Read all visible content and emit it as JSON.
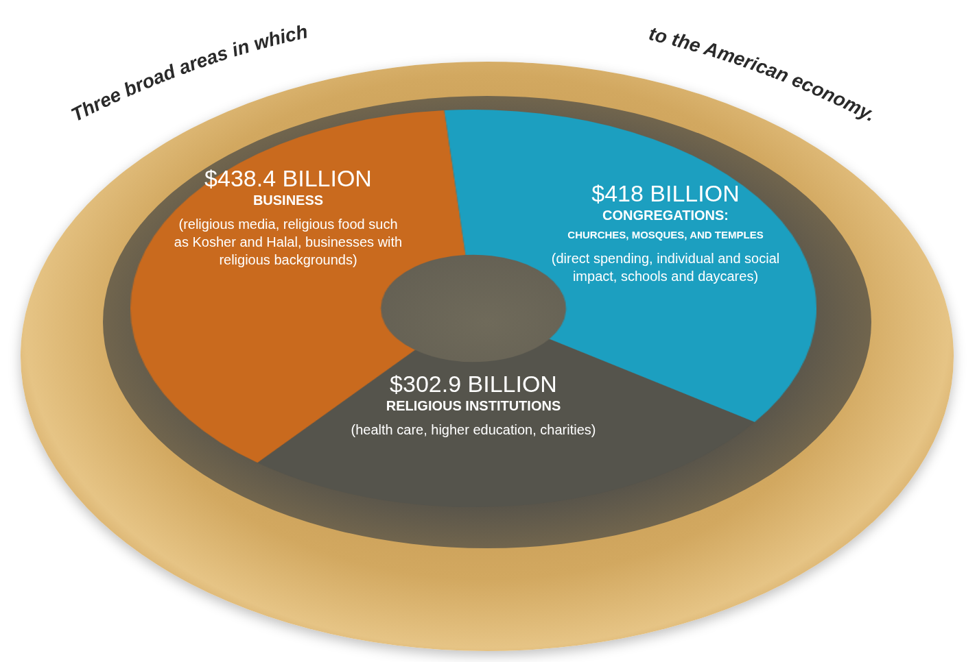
{
  "chart_data": {
    "type": "doughnut",
    "title": [
      "Three broad areas in which",
      "to the American economy."
    ],
    "categories": [
      "BUSINESS",
      "CONGREGATIONS:",
      "RELIGIOUS INSTITUTIONS"
    ],
    "subtitles": [
      null,
      "CHURCHES, MOSQUES, AND TEMPLES",
      null
    ],
    "descriptions": [
      "(religious media, religious food such as Kosher and Halal, businesses with religious backgrounds)",
      "(direct spending, individual and social impact, schools and daycares)",
      "(health care, higher education, charities)"
    ],
    "values": [
      438.4,
      418,
      302.9
    ],
    "value_labels": [
      "$438.4 BILLION",
      "$418 BILLION",
      "$302.9 BILLION"
    ],
    "colors": [
      "#c96a1e",
      "#1c9fc0",
      "#55544c"
    ],
    "data_labels": true
  }
}
